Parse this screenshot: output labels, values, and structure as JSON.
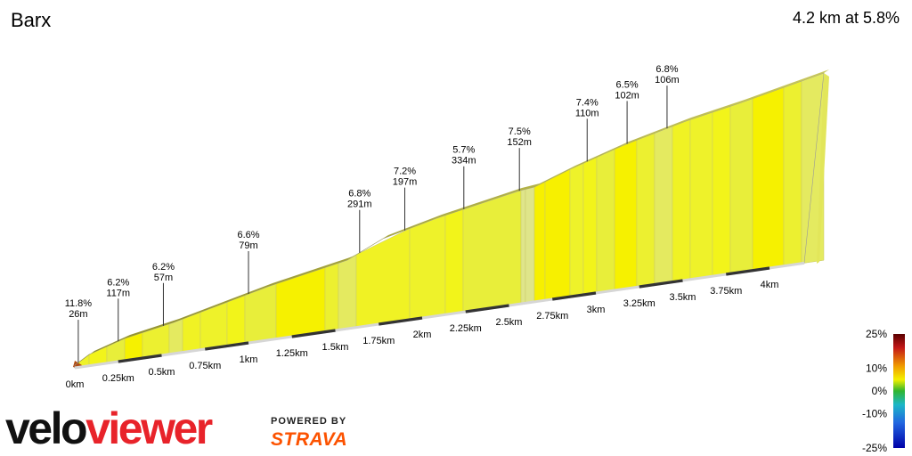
{
  "segment": {
    "name": "Barx",
    "summary": "4.2 km at 5.8%"
  },
  "branding": {
    "logo_text": "veloviewer",
    "powered_by": "POWERED BY",
    "partner": "STRAVA"
  },
  "colors": {
    "surface": "#eef22a",
    "edge": "#a4a32a",
    "steep": "#f6ef00",
    "start": "#b04a12"
  },
  "chart_data": {
    "type": "area",
    "title": "Barx",
    "distance_km": 4.2,
    "average_gradient_pct": 5.8,
    "x_ticks": [
      {
        "km": 0,
        "label": "0km"
      },
      {
        "km": 0.25,
        "label": "0.25km"
      },
      {
        "km": 0.5,
        "label": "0.5km"
      },
      {
        "km": 0.75,
        "label": "0.75km"
      },
      {
        "km": 1,
        "label": "1km"
      },
      {
        "km": 1.25,
        "label": "1.25km"
      },
      {
        "km": 1.5,
        "label": "1.5km"
      },
      {
        "km": 1.75,
        "label": "1.75km"
      },
      {
        "km": 2,
        "label": "2km"
      },
      {
        "km": 2.25,
        "label": "2.25km"
      },
      {
        "km": 2.5,
        "label": "2.5km"
      },
      {
        "km": 2.75,
        "label": "2.75km"
      },
      {
        "km": 3,
        "label": "3km"
      },
      {
        "km": 3.25,
        "label": "3.25km"
      },
      {
        "km": 3.5,
        "label": "3.5km"
      },
      {
        "km": 3.75,
        "label": "3.75km"
      },
      {
        "km": 4,
        "label": "4km"
      }
    ],
    "gradient_labels": [
      {
        "km": 0.02,
        "gradient": "11.8%",
        "length": "26m"
      },
      {
        "km": 0.25,
        "gradient": "6.2%",
        "length": "117m"
      },
      {
        "km": 0.51,
        "gradient": "6.2%",
        "length": "57m"
      },
      {
        "km": 1.0,
        "gradient": "6.6%",
        "length": "79m"
      },
      {
        "km": 1.64,
        "gradient": "6.8%",
        "length": "291m"
      },
      {
        "km": 1.9,
        "gradient": "7.2%",
        "length": "197m"
      },
      {
        "km": 2.24,
        "gradient": "5.7%",
        "length": "334m"
      },
      {
        "km": 2.56,
        "gradient": "7.5%",
        "length": "152m"
      },
      {
        "km": 2.95,
        "gradient": "7.4%",
        "length": "110m"
      },
      {
        "km": 3.18,
        "gradient": "6.5%",
        "length": "102m"
      },
      {
        "km": 3.41,
        "gradient": "6.8%",
        "length": "106m"
      }
    ],
    "legend": {
      "labels": [
        "25%",
        "10%",
        "0%",
        "-10%",
        "-25%"
      ],
      "values": [
        25,
        10,
        0,
        -10,
        -25
      ]
    }
  }
}
